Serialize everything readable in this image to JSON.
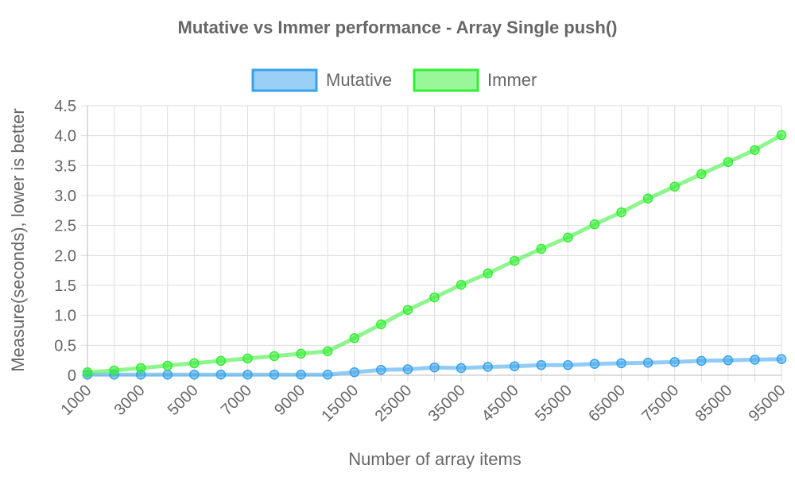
{
  "chart_data": {
    "type": "line",
    "title": "Mutative vs Immer performance - Array Single push()",
    "xlabel": "Number of array items",
    "ylabel": "Measure(seconds), lower is better",
    "ylim": [
      0,
      4.5
    ],
    "yticks": [
      "0",
      "0.5",
      "1.0",
      "1.5",
      "2.0",
      "2.5",
      "3.0",
      "3.5",
      "4.0",
      "4.5"
    ],
    "grid": true,
    "legend_position": "top",
    "categories": [
      "1000",
      "2000",
      "3000",
      "4000",
      "5000",
      "6000",
      "7000",
      "8000",
      "9000",
      "10000",
      "15000",
      "20000",
      "25000",
      "30000",
      "35000",
      "40000",
      "45000",
      "50000",
      "55000",
      "60000",
      "65000",
      "70000",
      "75000",
      "80000",
      "85000",
      "90000",
      "95000"
    ],
    "tick_labels": [
      "1000",
      "3000",
      "5000",
      "7000",
      "9000",
      "15000",
      "25000",
      "35000",
      "45000",
      "55000",
      "65000",
      "75000",
      "85000",
      "95000"
    ],
    "series": [
      {
        "name": "Mutative",
        "color": "#36a2eb",
        "values": [
          0.01,
          0.01,
          0.01,
          0.01,
          0.01,
          0.01,
          0.01,
          0.01,
          0.01,
          0.01,
          0.05,
          0.09,
          0.1,
          0.13,
          0.12,
          0.14,
          0.15,
          0.17,
          0.17,
          0.19,
          0.2,
          0.21,
          0.22,
          0.24,
          0.25,
          0.26,
          0.27
        ]
      },
      {
        "name": "Immer",
        "color": "#33ee33",
        "values": [
          0.05,
          0.08,
          0.12,
          0.16,
          0.2,
          0.24,
          0.28,
          0.32,
          0.36,
          0.4,
          0.62,
          0.85,
          1.09,
          1.3,
          1.51,
          1.7,
          1.91,
          2.11,
          2.3,
          2.52,
          2.72,
          2.95,
          3.15,
          3.36,
          3.56,
          3.76,
          4.01
        ]
      }
    ]
  }
}
